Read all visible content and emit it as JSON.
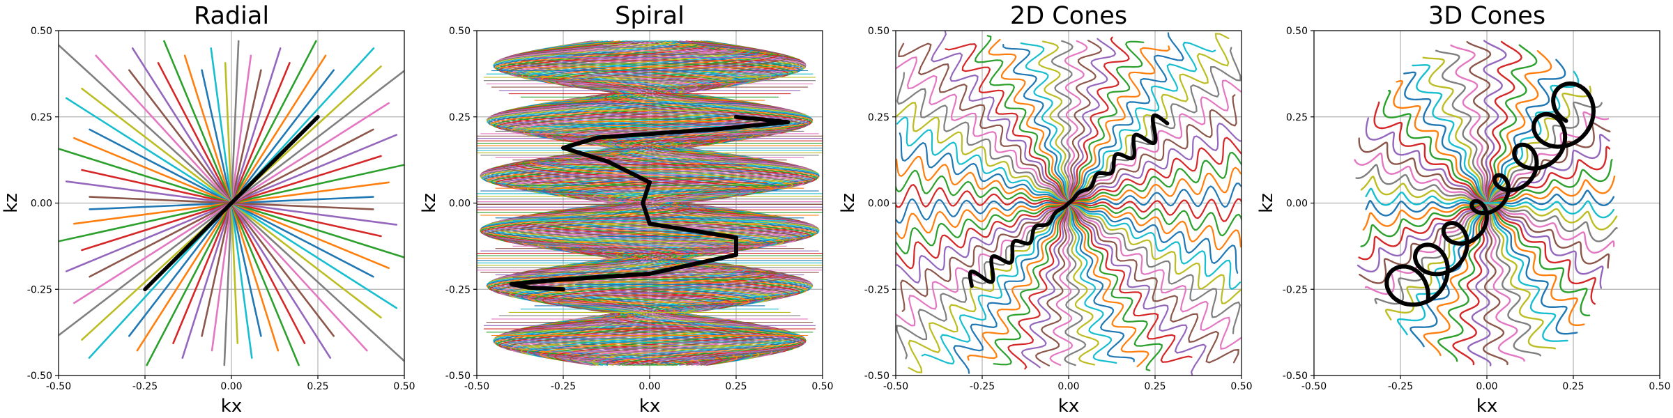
{
  "palette": [
    "#1f77b4",
    "#ff7f0e",
    "#2ca02c",
    "#d62728",
    "#9467bd",
    "#8c564b",
    "#e377c2",
    "#7f7f7f",
    "#bcbd22",
    "#17becf"
  ],
  "highlight_color": "#000000",
  "chart_data": [
    {
      "type": "line",
      "panel": "radial",
      "title": "Radial",
      "xlabel": "kx",
      "ylabel": "kz",
      "xlim": [
        -0.5,
        0.5
      ],
      "ylim": [
        -0.5,
        0.5
      ],
      "xticks": [
        "-0.50",
        "-0.25",
        "0.00",
        "0.25",
        "0.50"
      ],
      "yticks": [
        "-0.50",
        "-0.25",
        "0.00",
        "0.25",
        "0.50"
      ],
      "grid": true,
      "trajectory": "radial spokes through the k-space center",
      "num_spokes": 36,
      "highlight": {
        "x": [
          -0.25,
          0.25
        ],
        "y": [
          -0.25,
          0.25
        ]
      }
    },
    {
      "type": "line",
      "panel": "spiral",
      "title": "Spiral",
      "xlabel": "kx",
      "ylabel": "kz",
      "xlim": [
        -0.5,
        0.5
      ],
      "ylim": [
        -0.5,
        0.5
      ],
      "xticks": [
        "-0.50",
        "-0.25",
        "0.00",
        "0.25",
        "0.50"
      ],
      "yticks": [
        "-0.50",
        "-0.25",
        "0.00",
        "0.25",
        "0.50"
      ],
      "grid": true,
      "trajectory": "stack of cones traced by spiral interleaves",
      "highlight": {
        "x": [
          -0.25,
          -0.35,
          -0.4,
          -0.3,
          0.0,
          0.25,
          0.25,
          0.0,
          -0.02,
          0.0,
          -0.12,
          -0.25,
          -0.15,
          0.2,
          0.4,
          0.25
        ],
        "y": [
          -0.25,
          -0.245,
          -0.235,
          -0.225,
          -0.205,
          -0.15,
          -0.1,
          -0.06,
          0.0,
          0.06,
          0.12,
          0.16,
          0.19,
          0.215,
          0.235,
          0.25
        ]
      }
    },
    {
      "type": "line",
      "panel": "cones2d",
      "title": "2D Cones",
      "xlabel": "kx",
      "ylabel": "kz",
      "xlim": [
        -0.5,
        0.5
      ],
      "ylim": [
        -0.5,
        0.5
      ],
      "xticks": [
        "-0.50",
        "-0.25",
        "0.00",
        "0.25",
        "0.50"
      ],
      "yticks": [
        "-0.50",
        "-0.25",
        "0.00",
        "0.25",
        "0.50"
      ],
      "grid": true,
      "trajectory": "2D cones with oscillating readouts",
      "highlight": {
        "x": [
          -0.28,
          0.28
        ],
        "y": [
          -0.24,
          0.24
        ]
      }
    },
    {
      "type": "line",
      "panel": "cones3d",
      "title": "3D Cones",
      "xlabel": "kx",
      "ylabel": "kz",
      "xlim": [
        -0.5,
        0.5
      ],
      "ylim": [
        -0.5,
        0.5
      ],
      "xticks": [
        "-0.50",
        "-0.25",
        "0.00",
        "0.25",
        "0.50"
      ],
      "yticks": [
        "-0.50",
        "-0.25",
        "0.00",
        "0.25",
        "0.50"
      ],
      "grid": true,
      "trajectory": "3D cones with looping readouts",
      "highlight": {
        "x": [
          -0.25,
          0.28
        ],
        "y": [
          -0.28,
          0.3
        ]
      }
    }
  ]
}
